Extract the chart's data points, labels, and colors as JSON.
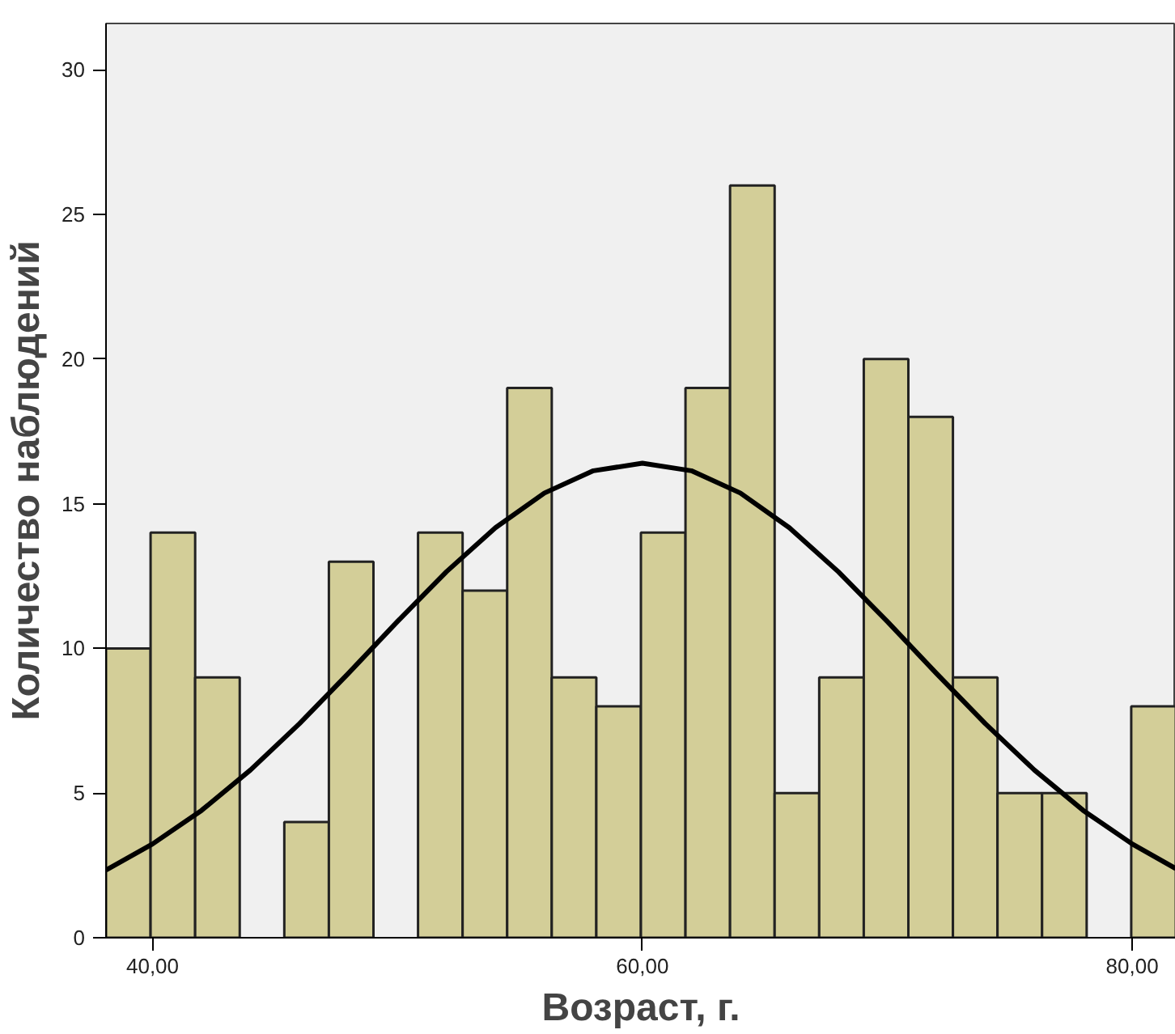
{
  "chart_data": {
    "type": "histogram",
    "xlabel": "Возраст, г.",
    "ylabel": "Количество наблюдений",
    "bins": [
      38.1,
      39.92,
      41.74,
      43.56,
      45.38,
      47.2,
      49.02,
      50.84,
      52.66,
      54.48,
      56.3,
      58.12,
      59.94,
      61.76,
      63.58,
      65.4,
      67.22,
      69.04,
      70.86,
      72.68,
      74.5,
      76.32,
      78.14,
      79.96,
      81.78
    ],
    "values": [
      10,
      14,
      9,
      0,
      4,
      13,
      0,
      14,
      12,
      19,
      9,
      8,
      14,
      19,
      26,
      5,
      9,
      20,
      18,
      9,
      5,
      5,
      0,
      8
    ],
    "color": "#d3ce98",
    "series": [
      {
        "type": "line",
        "color": "#000000",
        "x": [
          38.1,
          40,
          42,
          44,
          46,
          48,
          50,
          52,
          54,
          56,
          58,
          60,
          62,
          64,
          66,
          68,
          70,
          72,
          74,
          76,
          78,
          80,
          81.78
        ],
        "values": [
          2.34,
          3.24,
          4.4,
          5.8,
          7.4,
          9.14,
          10.93,
          12.65,
          14.17,
          15.37,
          16.14,
          16.4,
          16.14,
          15.37,
          14.17,
          12.65,
          10.93,
          9.14,
          7.4,
          5.8,
          4.4,
          3.24,
          2.39
        ]
      }
    ],
    "xlim": [
      38.1,
      81.78
    ],
    "ylim": [
      0,
      31.6
    ],
    "xticks": [
      {
        "value": 40,
        "label": "40,00"
      },
      {
        "value": 60,
        "label": "60,00"
      },
      {
        "value": 80,
        "label": "80,00"
      }
    ],
    "yticks": [
      0,
      5,
      10,
      15,
      20,
      25,
      30
    ],
    "grid": false
  }
}
